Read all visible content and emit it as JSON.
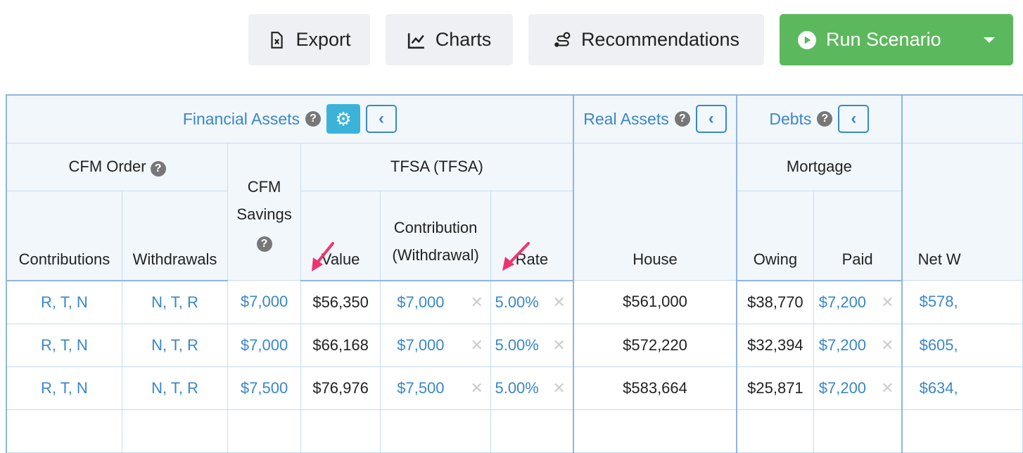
{
  "toolbar": {
    "export": "Export",
    "charts": "Charts",
    "recommendations": "Recommendations",
    "run": "Run Scenario"
  },
  "groups": {
    "financial": "Financial Assets",
    "real": "Real Assets",
    "debts": "Debts"
  },
  "sub": {
    "cfm_order": "CFM Order",
    "cfm_savings": "CFM Savings",
    "tfsa": "TFSA (TFSA)",
    "mortgage": "Mortgage"
  },
  "cols": {
    "contributions": "Contributions",
    "withdrawals": "Withdrawals",
    "value": "Value",
    "contribution": "Contribution (Withdrawal)",
    "rate": "Rate",
    "house": "House",
    "owing": "Owing",
    "paid": "Paid",
    "net": "Net W"
  },
  "rows": [
    {
      "contrib": "R, T, N",
      "withdraw": "N, T, R",
      "savings": "$7,000",
      "value": "$56,350",
      "tfsa_contrib": "$7,000",
      "rate": "5.00%",
      "house": "$561,000",
      "owing": "$38,770",
      "paid": "$7,200",
      "net": "$578,"
    },
    {
      "contrib": "R, T, N",
      "withdraw": "N, T, R",
      "savings": "$7,000",
      "value": "$66,168",
      "tfsa_contrib": "$7,000",
      "rate": "5.00%",
      "house": "$572,220",
      "owing": "$32,394",
      "paid": "$7,200",
      "net": "$605,"
    },
    {
      "contrib": "R, T, N",
      "withdraw": "N, T, R",
      "savings": "$7,500",
      "value": "$76,976",
      "tfsa_contrib": "$7,500",
      "rate": "5.00%",
      "house": "$583,664",
      "owing": "$25,871",
      "paid": "$7,200",
      "net": "$634,"
    }
  ]
}
